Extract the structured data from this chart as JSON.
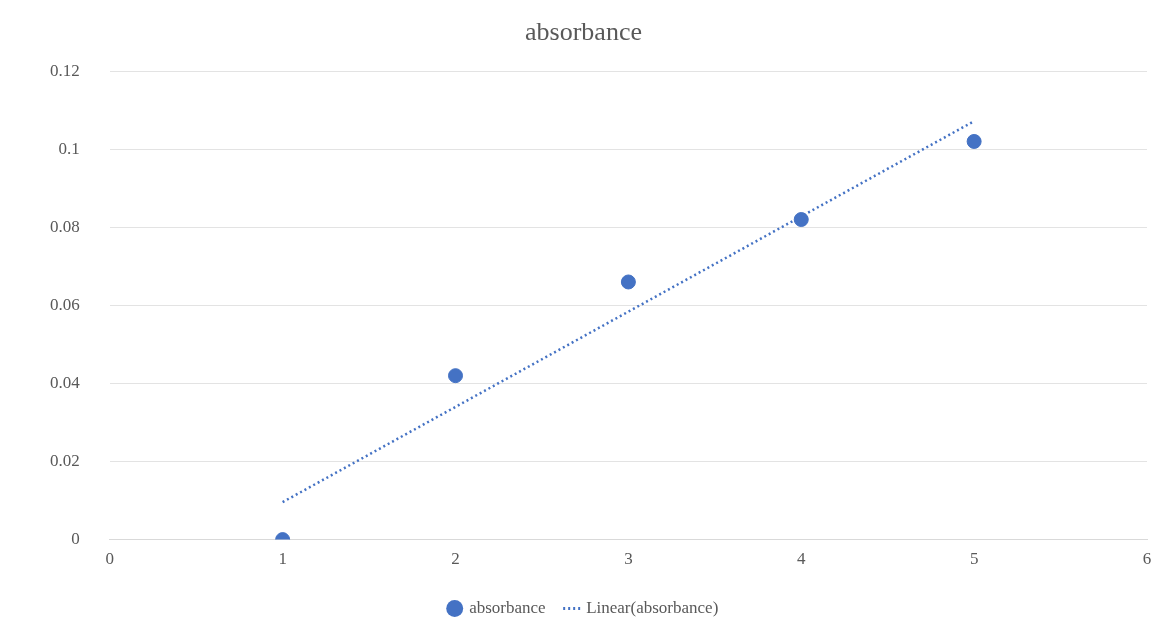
{
  "chart_data": {
    "type": "scatter",
    "title": "absorbance",
    "series": [
      {
        "name": "absorbance",
        "color": "#4472c4",
        "x": [
          1,
          2,
          3,
          4,
          5
        ],
        "values": [
          0,
          0.042,
          0.066,
          0.082,
          0.102
        ],
        "marker": "circle"
      },
      {
        "name": "Linear(absorbance)",
        "type": "line",
        "color": "#4472c4",
        "x": [
          1,
          5
        ],
        "values": [
          0.0096,
          0.1072
        ],
        "marker": "none",
        "line_style": "dotted"
      }
    ],
    "xlim": [
      0,
      6
    ],
    "xticks": [
      0,
      1,
      2,
      3,
      4,
      5,
      6
    ],
    "ylim": [
      0,
      0.12
    ],
    "yticks": [
      0,
      0.02,
      0.04,
      0.06,
      0.08,
      0.1,
      0.12
    ],
    "grid": "y",
    "legend": "bottom"
  }
}
